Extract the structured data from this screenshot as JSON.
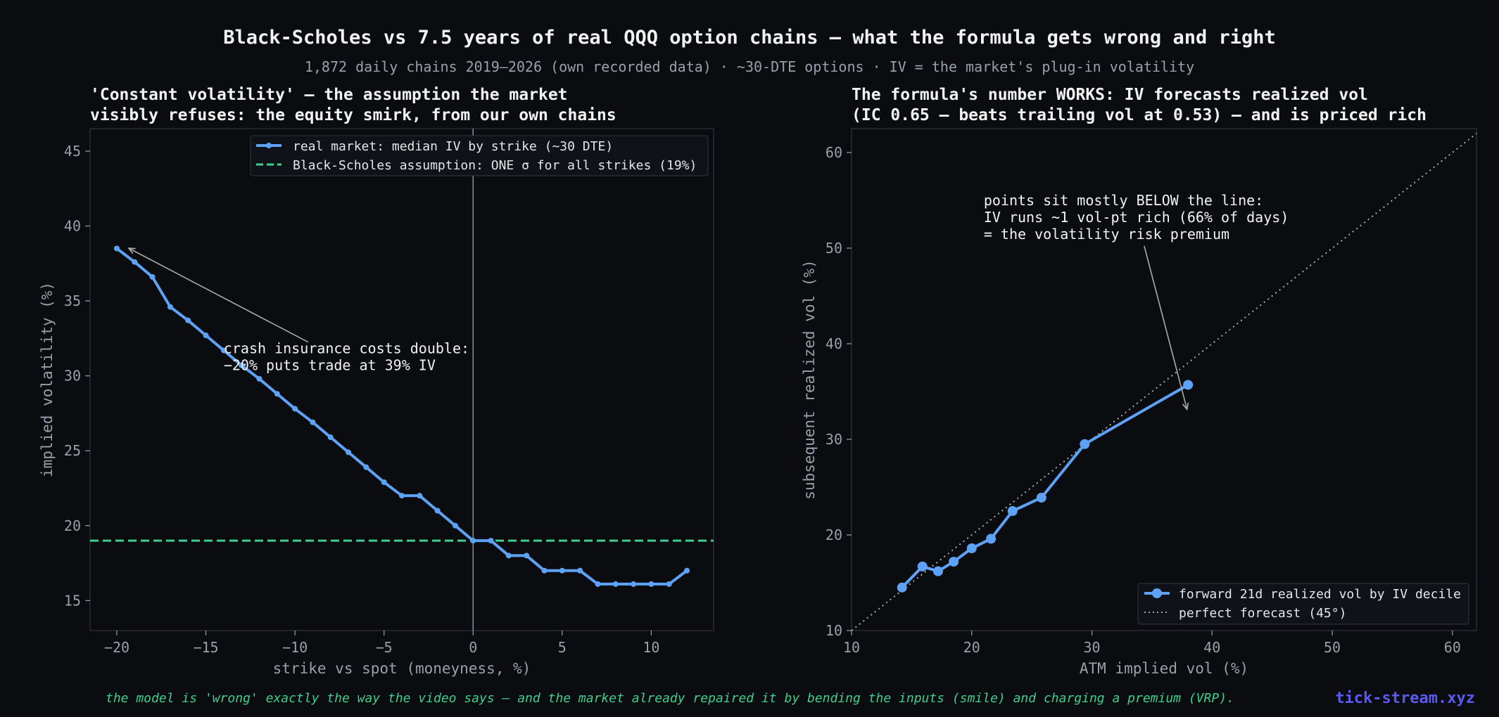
{
  "title": "Black-Scholes vs 7.5 years of real QQQ option chains — what the formula gets wrong and right",
  "subtitle": "1,872 daily chains 2019–2026 (own recorded data) · ~30-DTE options · IV = the market's plug-in volatility",
  "footer": "the model is 'wrong' exactly the way the video says — and the market already repaired it by bending the inputs (smile) and charging a premium (VRP).",
  "brand": "tick-stream.xyz",
  "colors": {
    "background": "#0b0c10",
    "series": "#5ea2f5",
    "assumption": "#3ecf8e",
    "diagonal": "#aaaaaa",
    "footer": "#3ecf8e",
    "brand": "#5a5af0"
  },
  "chart_data": [
    {
      "type": "line",
      "title_lines": [
        "'Constant volatility' — the assumption the market",
        "visibly refuses: the equity smirk, from our own chains"
      ],
      "xlabel": "strike vs spot (moneyness, %)",
      "ylabel": "implied volatility (%)",
      "xlim": [
        -21.5,
        13.5
      ],
      "ylim": [
        13,
        46.5
      ],
      "xticks": [
        -20,
        -15,
        -10,
        -5,
        0,
        5,
        10
      ],
      "xtick_labels": [
        "−20",
        "−15",
        "−10",
        "−5",
        "0",
        "5",
        "10"
      ],
      "yticks": [
        15,
        20,
        25,
        30,
        35,
        40,
        45
      ],
      "ytick_labels": [
        "15",
        "20",
        "25",
        "30",
        "35",
        "40",
        "45"
      ],
      "grid": false,
      "legend": "top-right",
      "series": [
        {
          "name": "real market: median IV by strike (~30 DTE)",
          "x": [
            -20,
            -19,
            -18,
            -17,
            -16,
            -15,
            -14,
            -13,
            -12,
            -11,
            -10,
            -9,
            -8,
            -7,
            -6,
            -5,
            -4,
            -3,
            -2,
            -1,
            0,
            1,
            2,
            3,
            4,
            5,
            6,
            7,
            8,
            9,
            10,
            11,
            12
          ],
          "y": [
            38.5,
            37.6,
            36.6,
            34.6,
            33.7,
            32.7,
            31.7,
            30.7,
            29.8,
            28.8,
            27.8,
            26.9,
            25.9,
            24.9,
            23.9,
            22.9,
            22.0,
            22.0,
            21.0,
            20.0,
            19.0,
            19.0,
            18.0,
            18.0,
            17.0,
            17.0,
            17.0,
            16.1,
            16.1,
            16.1,
            16.1,
            16.1,
            17.0
          ]
        },
        {
          "name": "Black-Scholes assumption: ONE σ for all strikes (19%)",
          "constant_y": 19
        }
      ],
      "vline_x": 0,
      "annotation": {
        "lines": [
          "crash insurance costs double:",
          "−20% puts trade at 39% IV"
        ],
        "text_at": [
          -14.0,
          31.5
        ],
        "arrow_to": [
          -19.3,
          38.5
        ]
      }
    },
    {
      "type": "line",
      "title_lines": [
        "The formula's number WORKS: IV forecasts realized vol",
        "(IC 0.65 — beats trailing vol at 0.53) — and is priced rich"
      ],
      "xlabel": "ATM implied vol (%)",
      "ylabel": "subsequent realized vol (%)",
      "xlim": [
        10,
        62
      ],
      "ylim": [
        10,
        62.5
      ],
      "xticks": [
        10,
        20,
        30,
        40,
        50,
        60
      ],
      "xtick_labels": [
        "10",
        "20",
        "30",
        "40",
        "50",
        "60"
      ],
      "yticks": [
        10,
        20,
        30,
        40,
        50,
        60
      ],
      "ytick_labels": [
        "10",
        "20",
        "30",
        "40",
        "50",
        "60"
      ],
      "grid": false,
      "legend": "bottom-right",
      "series": [
        {
          "name": "forward 21d realized vol by IV decile",
          "x": [
            14.2,
            15.9,
            17.2,
            18.5,
            20.0,
            21.6,
            23.4,
            25.8,
            29.4,
            38.0
          ],
          "y": [
            14.5,
            16.7,
            16.2,
            17.2,
            18.6,
            19.6,
            22.5,
            23.9,
            29.5,
            35.7
          ]
        },
        {
          "name": "perfect forecast (45°)",
          "diagonal": true
        }
      ],
      "annotation": {
        "lines": [
          "points sit mostly BELOW the line:",
          "IV runs ~1 vol-pt rich (66% of days)",
          "= the volatility risk premium"
        ],
        "text_at": [
          21,
          54.5
        ],
        "arrow_to": [
          37.9,
          33.2
        ]
      }
    }
  ]
}
